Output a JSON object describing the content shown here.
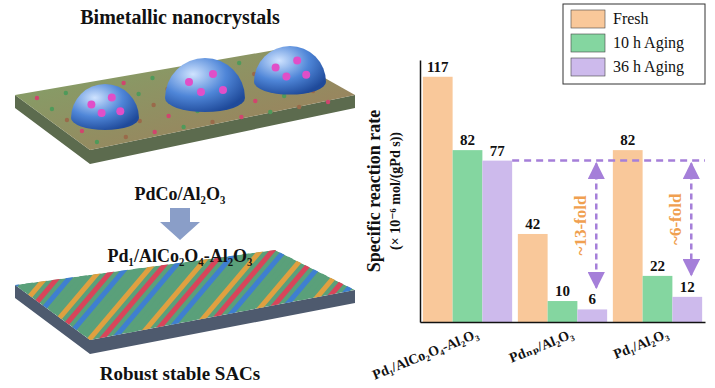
{
  "chart_data": {
    "type": "bar",
    "categories": [
      "Pd₁/AlCo₂O₄-Al₂O₃",
      "Pdₙₚ/Al₂O₃",
      "Pd₁/Al₂O₃"
    ],
    "series": [
      {
        "name": "Fresh",
        "color": "#f9c89a",
        "values": [
          117,
          42,
          82
        ]
      },
      {
        "name": "10 h Aging",
        "color": "#84d6a0",
        "values": [
          82,
          10,
          22
        ]
      },
      {
        "name": "36 h Aging",
        "color": "#cdbaec",
        "values": [
          77,
          6,
          12
        ]
      }
    ],
    "ylabel": [
      "Specific reaction rate",
      "(× 10⁻⁶ mol/(gPd s))"
    ],
    "ylim": [
      0,
      125
    ],
    "yticks": [],
    "grid": false,
    "legend": "top-right",
    "data_labels": true,
    "tick_labels": "x",
    "annotations": [
      "~13-fold",
      "~6-fold"
    ]
  },
  "illustration": {
    "labels": [
      "Bimetallic nanocrystals",
      "PdCo/Al₂O₃",
      "Pd₁/AlCo₂O₄-Al₂O₃",
      "Robust stable SACs"
    ]
  }
}
